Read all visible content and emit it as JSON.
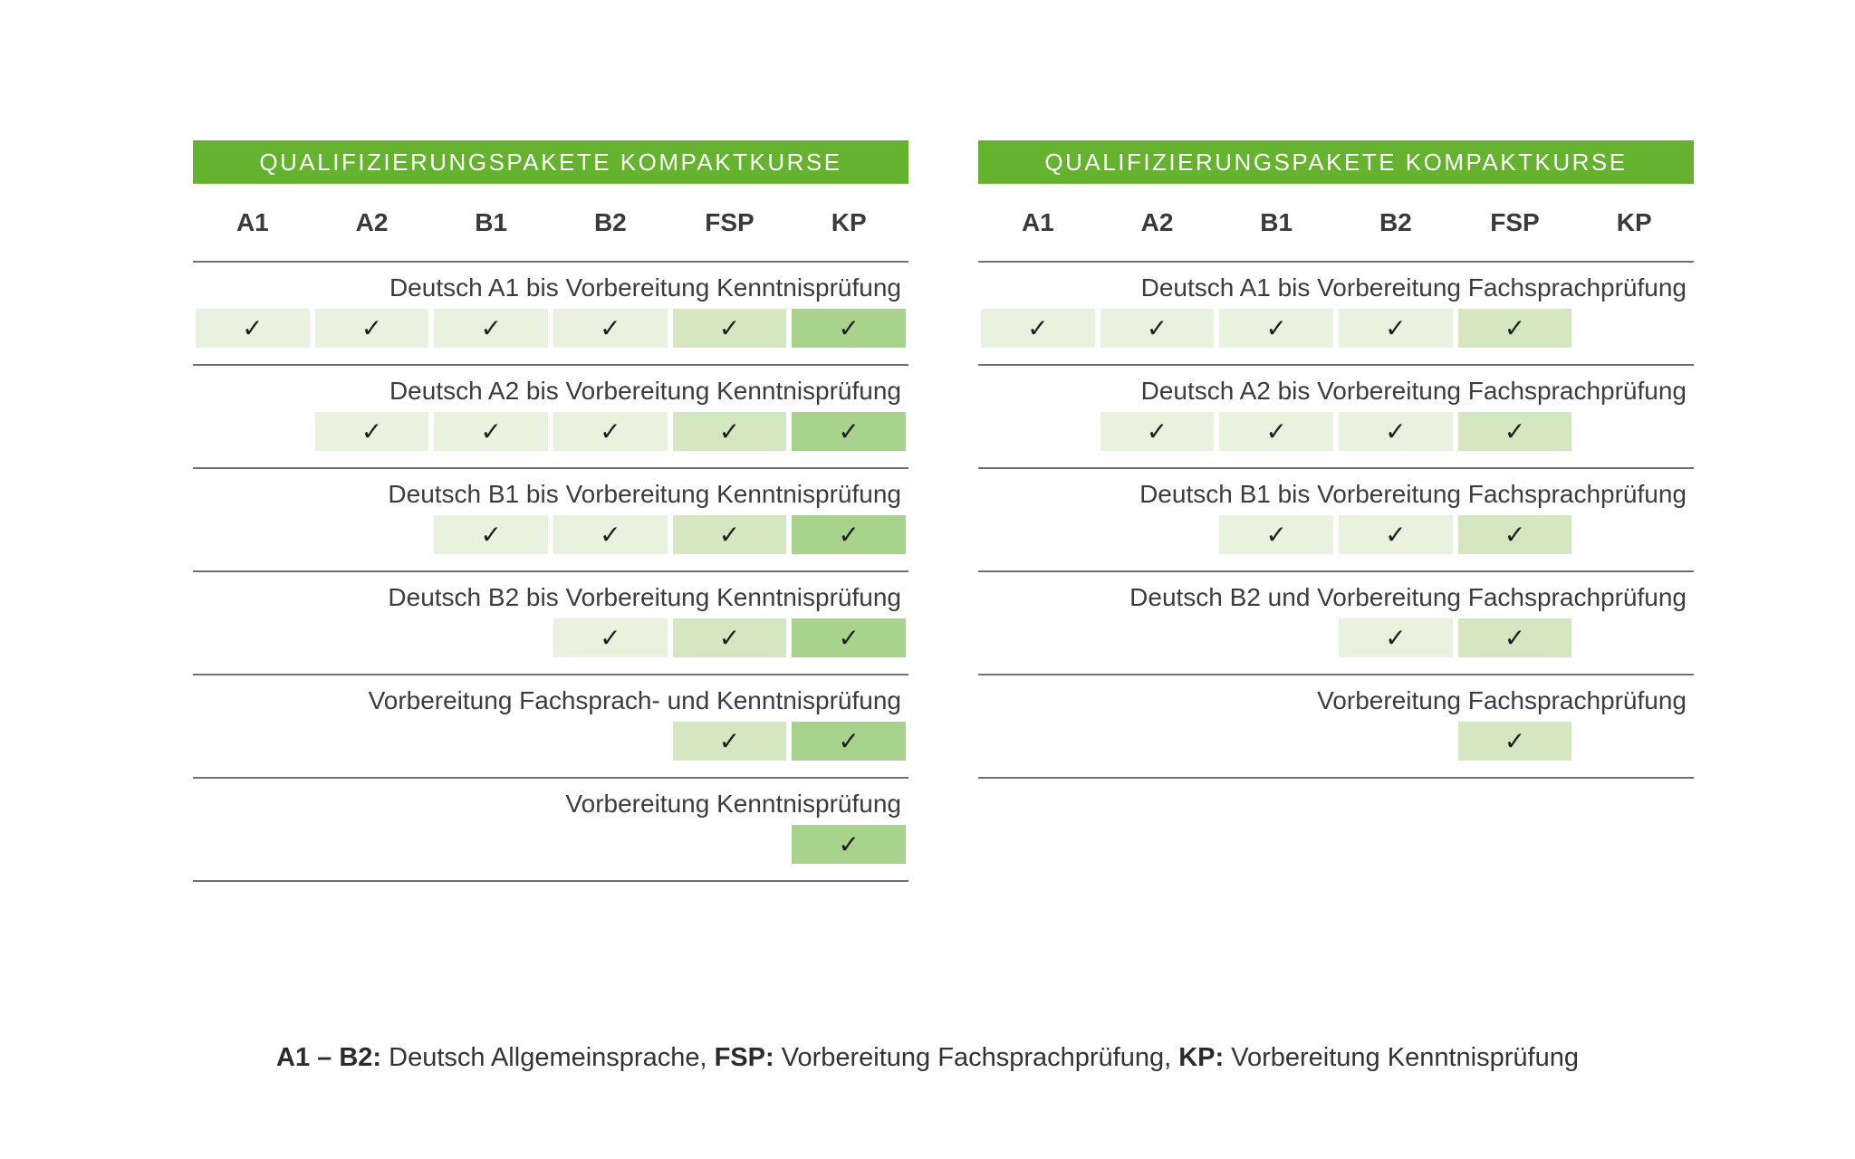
{
  "colors": {
    "header_bg": "#64b22e",
    "header_text": "#ffffff",
    "cell_light": "#e9f2df",
    "cell_medium": "#d5e7c1",
    "cell_dark": "#a9d28c",
    "divider": "#6f6f6f",
    "text": "#3c3c3c"
  },
  "check_glyph": "✓",
  "tables": [
    {
      "title": "QUALIFIZIERUNGSPAKETE KOMPAKTKURSE",
      "columns": [
        "A1",
        "A2",
        "B1",
        "B2",
        "FSP",
        "KP"
      ],
      "column_tones": [
        "light",
        "light",
        "light",
        "light",
        "medium",
        "dark"
      ],
      "rows": [
        {
          "label": "Deutsch A1 bis Vorbereitung Kenntnisprüfung",
          "checks": [
            true,
            true,
            true,
            true,
            true,
            true
          ]
        },
        {
          "label": "Deutsch A2 bis Vorbereitung Kenntnisprüfung",
          "checks": [
            false,
            true,
            true,
            true,
            true,
            true
          ]
        },
        {
          "label": "Deutsch B1 bis Vorbereitung Kenntnisprüfung",
          "checks": [
            false,
            false,
            true,
            true,
            true,
            true
          ]
        },
        {
          "label": "Deutsch B2 bis Vorbereitung Kenntnisprüfung",
          "checks": [
            false,
            false,
            false,
            true,
            true,
            true
          ]
        },
        {
          "label": "Vorbereitung Fachsprach- und Kenntnisprüfung",
          "checks": [
            false,
            false,
            false,
            false,
            true,
            true
          ]
        },
        {
          "label": "Vorbereitung Kenntnisprüfung",
          "checks": [
            false,
            false,
            false,
            false,
            false,
            true
          ]
        }
      ]
    },
    {
      "title": "QUALIFIZIERUNGSPAKETE KOMPAKTKURSE",
      "columns": [
        "A1",
        "A2",
        "B1",
        "B2",
        "FSP",
        "KP"
      ],
      "column_tones": [
        "light",
        "light",
        "light",
        "light",
        "medium",
        "dark"
      ],
      "rows": [
        {
          "label": "Deutsch A1 bis Vorbereitung Fachsprachprüfung",
          "checks": [
            true,
            true,
            true,
            true,
            true,
            false
          ]
        },
        {
          "label": "Deutsch A2 bis Vorbereitung Fachsprachprüfung",
          "checks": [
            false,
            true,
            true,
            true,
            true,
            false
          ]
        },
        {
          "label": "Deutsch B1 bis Vorbereitung Fachsprachprüfung",
          "checks": [
            false,
            false,
            true,
            true,
            true,
            false
          ]
        },
        {
          "label": "Deutsch B2 und Vorbereitung Fachsprachprüfung",
          "checks": [
            false,
            false,
            false,
            true,
            true,
            false
          ]
        },
        {
          "label": "Vorbereitung Fachsprachprüfung",
          "checks": [
            false,
            false,
            false,
            false,
            true,
            false
          ]
        }
      ]
    }
  ],
  "legend": {
    "segments": [
      {
        "bold": "A1 – B2:",
        "text": " Deutsch Allgemeinsprache, "
      },
      {
        "bold": "FSP:",
        "text": " Vorbereitung Fachsprachprüfung, "
      },
      {
        "bold": "KP:",
        "text": " Vorbereitung Kenntnisprüfung"
      }
    ]
  }
}
